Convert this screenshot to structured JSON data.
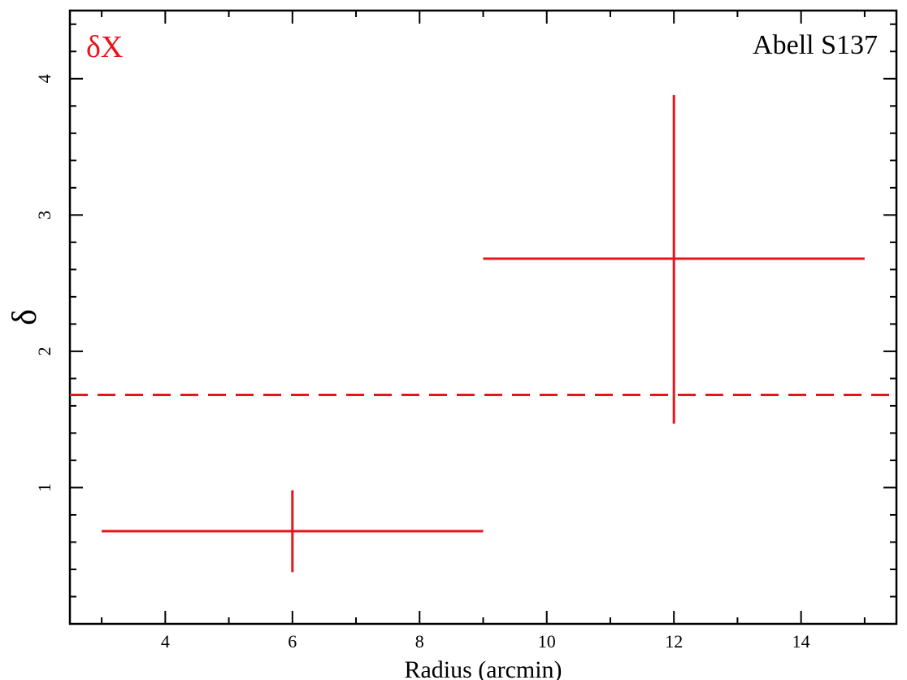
{
  "chart_data": {
    "type": "scatter",
    "title": "Abell S137",
    "legend_label": "δX",
    "xlabel": "Radius (arcmin)",
    "ylabel": "δ",
    "xlim": [
      2.5,
      15.5
    ],
    "ylim": [
      0,
      4.5
    ],
    "x_ticks": [
      4,
      6,
      8,
      10,
      12,
      14
    ],
    "y_ticks": [
      1,
      2,
      3,
      4
    ],
    "grid": false,
    "legend_position": "top-left",
    "colors": {
      "series": "#e8141b",
      "axes": "#000000"
    },
    "series": [
      {
        "name": "δX",
        "points": [
          {
            "x": 6,
            "y": 0.68,
            "x_err": 3,
            "y_low": 0.38,
            "y_high": 0.98
          },
          {
            "x": 12,
            "y": 2.68,
            "x_err": 3,
            "y_low": 1.47,
            "y_high": 3.88
          }
        ]
      }
    ],
    "reference_line": {
      "y": 1.68,
      "style": "dashed"
    }
  }
}
